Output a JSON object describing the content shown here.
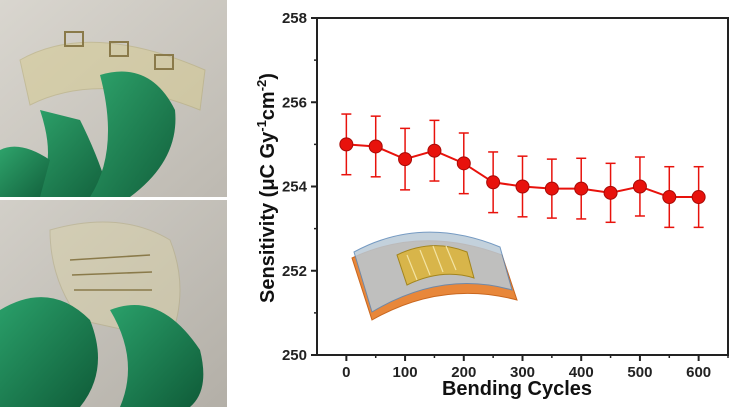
{
  "photos": {
    "top_desc_icon": "flexible-sensor-photo",
    "bottom_desc_icon": "bent-sensor-photo"
  },
  "colors": {
    "series": "#e8120c",
    "axis": "#222222",
    "glove": "#1f8a5a"
  },
  "chart_data": {
    "type": "line",
    "xlabel": "Bending Cycles",
    "ylabel_main": "Sensitivity (μC Gy",
    "ylabel_sup1": "-1",
    "ylabel_mid": "cm",
    "ylabel_sup2": "-2",
    "ylabel_end": ")",
    "xlim": [
      -50,
      650
    ],
    "ylim": [
      250,
      258
    ],
    "xticks": [
      0,
      100,
      200,
      300,
      400,
      500,
      600
    ],
    "xtick_labels": [
      "0",
      "100",
      "200",
      "300",
      "400",
      "500",
      "600"
    ],
    "yticks": [
      250,
      252,
      254,
      256,
      258
    ],
    "ytick_labels": [
      "250",
      "252",
      "254",
      "256",
      "258"
    ],
    "series": [
      {
        "x": [
          0,
          50,
          100,
          150,
          200,
          250,
          300,
          350,
          400,
          450,
          500,
          550,
          600
        ],
        "y": [
          255.0,
          254.95,
          254.65,
          254.85,
          254.55,
          254.1,
          254.0,
          253.95,
          253.95,
          253.85,
          254.0,
          253.75,
          253.75
        ],
        "error": [
          0.72,
          0.72,
          0.73,
          0.72,
          0.72,
          0.72,
          0.72,
          0.7,
          0.72,
          0.7,
          0.7,
          0.72,
          0.72
        ]
      }
    ],
    "inset_icon": "flexible-device-inset"
  }
}
